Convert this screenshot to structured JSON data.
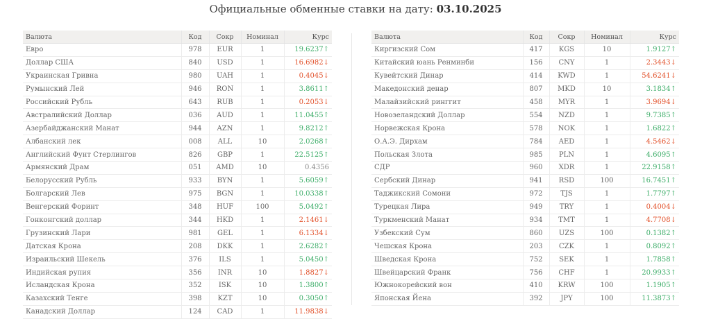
{
  "page": {
    "title_prefix": "Официальные обменные ставки на дату:",
    "date": "03.10.2025"
  },
  "colors": {
    "up": "#3fae6a",
    "down": "#e2522c",
    "flat": "#888888",
    "header_bg": "#f1f0ee"
  },
  "columns": {
    "currency": "Валюта",
    "code": "Код",
    "abbr": "Сокр",
    "nominal": "Номинал",
    "rate": "Курс"
  },
  "left_table": [
    {
      "name": "Евро",
      "code": "978",
      "abbr": "EUR",
      "nominal": "1",
      "rate": "19.6237",
      "dir": "up"
    },
    {
      "name": "Доллар США",
      "code": "840",
      "abbr": "USD",
      "nominal": "1",
      "rate": "16.6982",
      "dir": "down"
    },
    {
      "name": "Украинская Гривна",
      "code": "980",
      "abbr": "UAH",
      "nominal": "1",
      "rate": "0.4045",
      "dir": "down"
    },
    {
      "name": "Румынский Лей",
      "code": "946",
      "abbr": "RON",
      "nominal": "1",
      "rate": "3.8611",
      "dir": "up"
    },
    {
      "name": "Российский Рубль",
      "code": "643",
      "abbr": "RUB",
      "nominal": "1",
      "rate": "0.2053",
      "dir": "down"
    },
    {
      "name": "Австралийский Доллар",
      "code": "036",
      "abbr": "AUD",
      "nominal": "1",
      "rate": "11.0455",
      "dir": "up"
    },
    {
      "name": "Азербайджанский Манат",
      "code": "944",
      "abbr": "AZN",
      "nominal": "1",
      "rate": "9.8212",
      "dir": "up"
    },
    {
      "name": "Албанский лек",
      "code": "008",
      "abbr": "ALL",
      "nominal": "10",
      "rate": "2.0268",
      "dir": "up"
    },
    {
      "name": "Английский Фунт Стерлингов",
      "code": "826",
      "abbr": "GBP",
      "nominal": "1",
      "rate": "22.5125",
      "dir": "up"
    },
    {
      "name": "Армянский Драм",
      "code": "051",
      "abbr": "AMD",
      "nominal": "10",
      "rate": "0.4356",
      "dir": "flat"
    },
    {
      "name": "Белорусский Рубль",
      "code": "933",
      "abbr": "BYN",
      "nominal": "1",
      "rate": "5.6059",
      "dir": "up"
    },
    {
      "name": "Болгарский Лев",
      "code": "975",
      "abbr": "BGN",
      "nominal": "1",
      "rate": "10.0338",
      "dir": "up"
    },
    {
      "name": "Венгерский Форинт",
      "code": "348",
      "abbr": "HUF",
      "nominal": "100",
      "rate": "5.0492",
      "dir": "up"
    },
    {
      "name": "Гонконгский доллар",
      "code": "344",
      "abbr": "HKD",
      "nominal": "1",
      "rate": "2.1461",
      "dir": "down"
    },
    {
      "name": "Грузинский Лари",
      "code": "981",
      "abbr": "GEL",
      "nominal": "1",
      "rate": "6.1334",
      "dir": "down"
    },
    {
      "name": "Датская Крона",
      "code": "208",
      "abbr": "DKK",
      "nominal": "1",
      "rate": "2.6282",
      "dir": "up"
    },
    {
      "name": "Израильский Шекель",
      "code": "376",
      "abbr": "ILS",
      "nominal": "1",
      "rate": "5.0450",
      "dir": "up"
    },
    {
      "name": "Индийская рупия",
      "code": "356",
      "abbr": "INR",
      "nominal": "10",
      "rate": "1.8827",
      "dir": "down"
    },
    {
      "name": "Исландская Крона",
      "code": "352",
      "abbr": "ISK",
      "nominal": "10",
      "rate": "1.3800",
      "dir": "up"
    },
    {
      "name": "Казахский Тенге",
      "code": "398",
      "abbr": "KZT",
      "nominal": "10",
      "rate": "0.3050",
      "dir": "up"
    },
    {
      "name": "Канадский Доллар",
      "code": "124",
      "abbr": "CAD",
      "nominal": "1",
      "rate": "11.9838",
      "dir": "down"
    }
  ],
  "right_table": [
    {
      "name": "Киргизский Сом",
      "code": "417",
      "abbr": "KGS",
      "nominal": "10",
      "rate": "1.9127",
      "dir": "up"
    },
    {
      "name": "Китайский юань Ренминби",
      "code": "156",
      "abbr": "CNY",
      "nominal": "1",
      "rate": "2.3443",
      "dir": "down"
    },
    {
      "name": "Кувейтский Динар",
      "code": "414",
      "abbr": "KWD",
      "nominal": "1",
      "rate": "54.6241",
      "dir": "down"
    },
    {
      "name": "Македонский денар",
      "code": "807",
      "abbr": "MKD",
      "nominal": "10",
      "rate": "3.1834",
      "dir": "up"
    },
    {
      "name": "Малайзийский ринггит",
      "code": "458",
      "abbr": "MYR",
      "nominal": "1",
      "rate": "3.9694",
      "dir": "down"
    },
    {
      "name": "Новозеландский Доллар",
      "code": "554",
      "abbr": "NZD",
      "nominal": "1",
      "rate": "9.7385",
      "dir": "up"
    },
    {
      "name": "Норвежская Крона",
      "code": "578",
      "abbr": "NOK",
      "nominal": "1",
      "rate": "1.6822",
      "dir": "up"
    },
    {
      "name": "О.А.Э. Дирхам",
      "code": "784",
      "abbr": "AED",
      "nominal": "1",
      "rate": "4.5462",
      "dir": "down"
    },
    {
      "name": "Польская Злота",
      "code": "985",
      "abbr": "PLN",
      "nominal": "1",
      "rate": "4.6095",
      "dir": "up"
    },
    {
      "name": "СДР",
      "code": "960",
      "abbr": "XDR",
      "nominal": "1",
      "rate": "22.9158",
      "dir": "up"
    },
    {
      "name": "Сербский Динар",
      "code": "941",
      "abbr": "RSD",
      "nominal": "100",
      "rate": "16.7451",
      "dir": "up"
    },
    {
      "name": "Таджикский Сомони",
      "code": "972",
      "abbr": "TJS",
      "nominal": "1",
      "rate": "1.7797",
      "dir": "up"
    },
    {
      "name": "Турецкая Лира",
      "code": "949",
      "abbr": "TRY",
      "nominal": "1",
      "rate": "0.4004",
      "dir": "down"
    },
    {
      "name": "Туркменский Манат",
      "code": "934",
      "abbr": "TMT",
      "nominal": "1",
      "rate": "4.7708",
      "dir": "down"
    },
    {
      "name": "Узбекский Сум",
      "code": "860",
      "abbr": "UZS",
      "nominal": "100",
      "rate": "0.1382",
      "dir": "up"
    },
    {
      "name": "Чешская Крона",
      "code": "203",
      "abbr": "CZK",
      "nominal": "1",
      "rate": "0.8092",
      "dir": "up"
    },
    {
      "name": "Шведская Крона",
      "code": "752",
      "abbr": "SEK",
      "nominal": "1",
      "rate": "1.7858",
      "dir": "up"
    },
    {
      "name": "Швейцарский Франк",
      "code": "756",
      "abbr": "CHF",
      "nominal": "1",
      "rate": "20.9933",
      "dir": "up"
    },
    {
      "name": "Южнокорейский вон",
      "code": "410",
      "abbr": "KRW",
      "nominal": "100",
      "rate": "1.1905",
      "dir": "up"
    },
    {
      "name": "Японская Йена",
      "code": "392",
      "abbr": "JPY",
      "nominal": "100",
      "rate": "11.3873",
      "dir": "up"
    }
  ]
}
